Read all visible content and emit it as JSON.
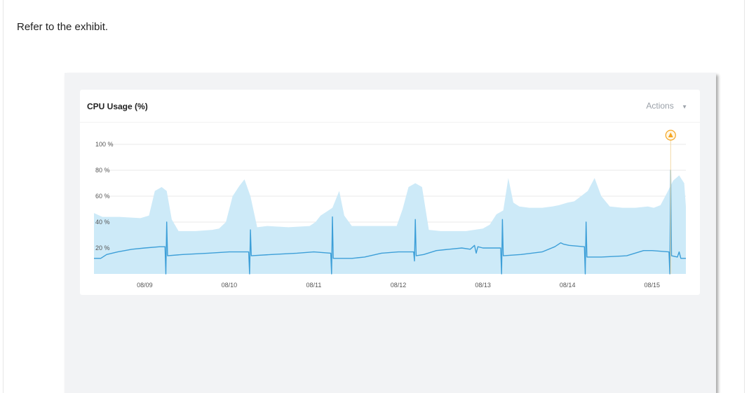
{
  "intro_text": "Refer to the exhibit.",
  "panel": {
    "title": "CPU Usage (%)",
    "actions_label": "Actions",
    "actions_icon": "chevron-down-icon",
    "alert_icon": "warning-icon"
  },
  "colors": {
    "area_fill": "#cdeaf8",
    "line": "#3d9fd8",
    "alert": "#f5a623",
    "grid": "#e8e8e8"
  },
  "chart_data": {
    "type": "area",
    "title": "CPU Usage (%)",
    "y_ticks": [
      "100 %",
      "80 %",
      "60 %",
      "40 %",
      "20 %"
    ],
    "y_tick_values": [
      100,
      80,
      60,
      40,
      20
    ],
    "ylim": [
      0,
      100
    ],
    "x_ticks": [
      "08/09",
      "08/10",
      "08/11",
      "08/12",
      "08/13",
      "08/14",
      "08/15"
    ],
    "xlim": [
      0,
      7.0
    ],
    "grid": true,
    "series": [
      {
        "style": "area",
        "points": [
          [
            0.0,
            47
          ],
          [
            0.1,
            44
          ],
          [
            0.3,
            44
          ],
          [
            0.55,
            43
          ],
          [
            0.65,
            45
          ],
          [
            0.72,
            64
          ],
          [
            0.8,
            67
          ],
          [
            0.86,
            64
          ],
          [
            0.92,
            42
          ],
          [
            1.0,
            33
          ],
          [
            1.2,
            33
          ],
          [
            1.4,
            34
          ],
          [
            1.48,
            35
          ],
          [
            1.56,
            40
          ],
          [
            1.64,
            60
          ],
          [
            1.72,
            68
          ],
          [
            1.78,
            73
          ],
          [
            1.85,
            60
          ],
          [
            1.93,
            36
          ],
          [
            2.05,
            37
          ],
          [
            2.3,
            36
          ],
          [
            2.55,
            37
          ],
          [
            2.62,
            40
          ],
          [
            2.68,
            45
          ],
          [
            2.75,
            48
          ],
          [
            2.82,
            51
          ],
          [
            2.9,
            64
          ],
          [
            2.96,
            45
          ],
          [
            3.05,
            37
          ],
          [
            3.3,
            37
          ],
          [
            3.58,
            37
          ],
          [
            3.65,
            50
          ],
          [
            3.72,
            67
          ],
          [
            3.8,
            70
          ],
          [
            3.88,
            67
          ],
          [
            3.96,
            34
          ],
          [
            4.1,
            33
          ],
          [
            4.4,
            33
          ],
          [
            4.6,
            35
          ],
          [
            4.68,
            38
          ],
          [
            4.76,
            46
          ],
          [
            4.84,
            49
          ],
          [
            4.9,
            74
          ],
          [
            4.96,
            55
          ],
          [
            5.03,
            52
          ],
          [
            5.15,
            51
          ],
          [
            5.3,
            51
          ],
          [
            5.42,
            52
          ],
          [
            5.5,
            53
          ],
          [
            5.6,
            55
          ],
          [
            5.68,
            56
          ],
          [
            5.76,
            60
          ],
          [
            5.84,
            64
          ],
          [
            5.92,
            74
          ],
          [
            6.0,
            60
          ],
          [
            6.1,
            52
          ],
          [
            6.25,
            51
          ],
          [
            6.4,
            51
          ],
          [
            6.55,
            52
          ],
          [
            6.62,
            51
          ],
          [
            6.7,
            53
          ],
          [
            6.78,
            63
          ],
          [
            6.85,
            72
          ],
          [
            6.92,
            76
          ],
          [
            6.98,
            70
          ],
          [
            7.0,
            52
          ]
        ]
      },
      {
        "style": "line",
        "points": [
          [
            0.0,
            12
          ],
          [
            0.08,
            12
          ],
          [
            0.15,
            15
          ],
          [
            0.28,
            17
          ],
          [
            0.45,
            19
          ],
          [
            0.6,
            20
          ],
          [
            0.78,
            21
          ],
          [
            0.84,
            21
          ],
          [
            0.85,
            0
          ],
          [
            0.86,
            40
          ],
          [
            0.87,
            14
          ],
          [
            1.05,
            15
          ],
          [
            1.35,
            16
          ],
          [
            1.6,
            17
          ],
          [
            1.83,
            17
          ],
          [
            1.84,
            0
          ],
          [
            1.85,
            34
          ],
          [
            1.86,
            14
          ],
          [
            2.1,
            15
          ],
          [
            2.4,
            16
          ],
          [
            2.6,
            17
          ],
          [
            2.8,
            16
          ],
          [
            2.81,
            0
          ],
          [
            2.82,
            44
          ],
          [
            2.83,
            12
          ],
          [
            3.05,
            12
          ],
          [
            3.2,
            13
          ],
          [
            3.4,
            16
          ],
          [
            3.6,
            17
          ],
          [
            3.78,
            17
          ],
          [
            3.79,
            10
          ],
          [
            3.8,
            42
          ],
          [
            3.81,
            14
          ],
          [
            3.9,
            15
          ],
          [
            4.05,
            18
          ],
          [
            4.2,
            19
          ],
          [
            4.35,
            20
          ],
          [
            4.45,
            19
          ],
          [
            4.5,
            22
          ],
          [
            4.52,
            16
          ],
          [
            4.54,
            21
          ],
          [
            4.6,
            20
          ],
          [
            4.75,
            20
          ],
          [
            4.81,
            20
          ],
          [
            4.82,
            0
          ],
          [
            4.83,
            42
          ],
          [
            4.84,
            14
          ],
          [
            5.05,
            15
          ],
          [
            5.3,
            17
          ],
          [
            5.45,
            21
          ],
          [
            5.52,
            24
          ],
          [
            5.55,
            23
          ],
          [
            5.62,
            22
          ],
          [
            5.8,
            21
          ],
          [
            5.81,
            0
          ],
          [
            5.82,
            40
          ],
          [
            5.83,
            13
          ],
          [
            6.0,
            13
          ],
          [
            6.3,
            14
          ],
          [
            6.5,
            18
          ],
          [
            6.6,
            18
          ],
          [
            6.8,
            17
          ],
          [
            6.81,
            0
          ],
          [
            6.82,
            80
          ],
          [
            6.83,
            14
          ],
          [
            6.9,
            13
          ],
          [
            6.92,
            17
          ],
          [
            6.94,
            12
          ],
          [
            7.0,
            12
          ]
        ]
      }
    ],
    "alert_marker": {
      "x": 6.82,
      "y": 100
    }
  }
}
